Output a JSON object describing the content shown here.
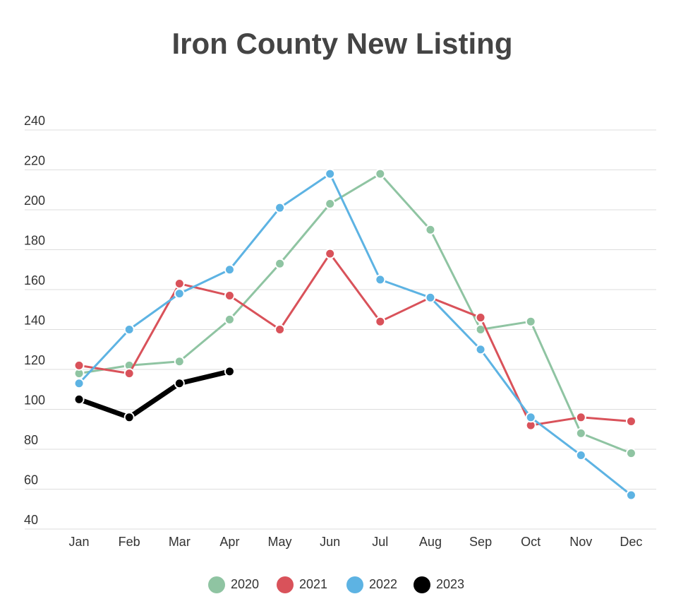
{
  "chart_data": {
    "type": "line",
    "title": "Iron County New Listing",
    "categories": [
      "Jan",
      "Feb",
      "Mar",
      "Apr",
      "May",
      "Jun",
      "Jul",
      "Aug",
      "Sep",
      "Oct",
      "Nov",
      "Dec"
    ],
    "series": [
      {
        "name": "2020",
        "color": "#8fc4a2",
        "values": [
          118,
          122,
          124,
          145,
          173,
          203,
          218,
          190,
          140,
          144,
          88,
          78
        ]
      },
      {
        "name": "2021",
        "color": "#d9525a",
        "values": [
          122,
          118,
          163,
          157,
          140,
          178,
          144,
          156,
          146,
          92,
          96,
          94
        ]
      },
      {
        "name": "2022",
        "color": "#5db3e3",
        "values": [
          113,
          140,
          158,
          170,
          201,
          218,
          165,
          156,
          130,
          96,
          77,
          57
        ]
      },
      {
        "name": "2023",
        "color": "#000000",
        "values": [
          105,
          96,
          113,
          119,
          null,
          null,
          null,
          null,
          null,
          null,
          null,
          null
        ]
      }
    ],
    "ylim": [
      40,
      240
    ],
    "yticks": [
      40,
      60,
      80,
      100,
      120,
      140,
      160,
      180,
      200,
      220,
      240
    ],
    "grid": true,
    "legend": "bottom"
  }
}
